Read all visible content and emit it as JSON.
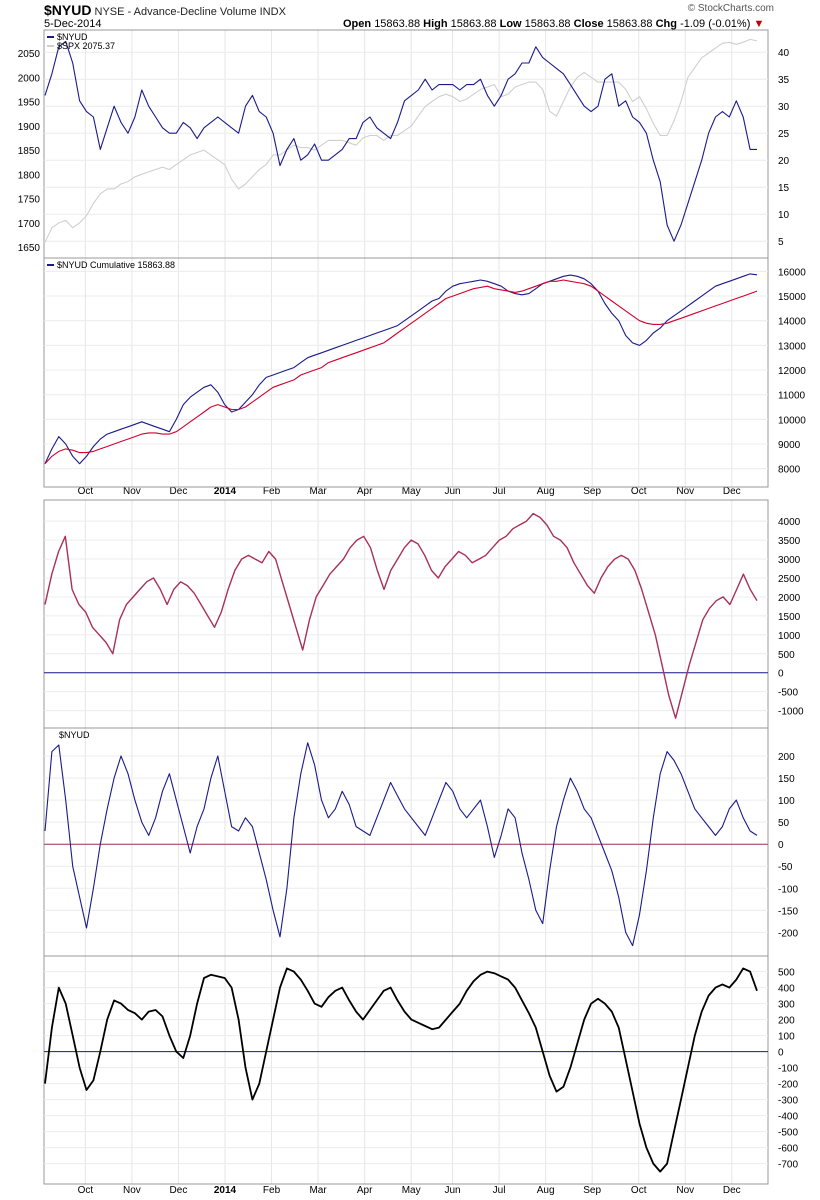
{
  "header": {
    "symbol": "$NYUD",
    "description": "NYSE - Advance-Decline Volume",
    "type": "INDX",
    "date": "5-Dec-2014",
    "brand": "© StockCharts.com",
    "open_label": "Open",
    "open": "15863.88",
    "high_label": "High",
    "high": "15863.88",
    "low_label": "Low",
    "low": "15863.88",
    "close_label": "Close",
    "close": "15863.88",
    "chg_label": "Chg",
    "chg": "-1.09 (-0.01%)",
    "colors": {
      "down": "#c00000"
    }
  },
  "chart_data": [
    {
      "type": "line",
      "panel": "price",
      "legend": [
        "$NYUD",
        "$SPX 2075.37"
      ],
      "series": [
        {
          "name": "$NYUD",
          "axis": "right",
          "color": "#1a1a8c",
          "values": [
            32,
            36,
            41,
            42,
            38,
            31,
            29,
            28,
            22,
            26,
            30,
            27,
            25,
            28,
            33,
            30,
            28,
            26,
            25,
            25,
            27,
            26,
            24,
            26,
            27,
            28,
            27,
            26,
            25,
            30,
            32,
            29,
            28,
            25,
            19,
            22,
            24,
            20,
            21,
            23,
            20,
            20,
            21,
            22,
            24,
            24,
            27,
            28,
            26,
            25,
            24,
            27,
            31,
            32,
            33,
            35,
            33,
            34,
            34,
            34,
            33,
            34,
            34,
            35,
            32,
            30,
            32,
            35,
            36,
            38,
            38,
            41,
            39,
            38,
            37,
            36,
            34,
            32,
            30,
            29,
            30,
            35,
            36,
            30,
            31,
            28,
            27,
            25,
            20,
            16,
            8,
            5,
            8,
            12,
            16,
            20,
            25,
            28,
            29,
            28,
            31,
            28,
            22,
            22
          ]
        },
        {
          "name": "$SPX 2075.37",
          "axis": "left",
          "color": "#cfcfcf",
          "values": [
            1660,
            1690,
            1700,
            1705,
            1690,
            1700,
            1715,
            1740,
            1760,
            1770,
            1770,
            1780,
            1785,
            1795,
            1800,
            1805,
            1810,
            1815,
            1810,
            1820,
            1830,
            1840,
            1845,
            1850,
            1840,
            1830,
            1820,
            1790,
            1770,
            1780,
            1795,
            1810,
            1820,
            1840,
            1840,
            1850,
            1860,
            1855,
            1855,
            1850,
            1860,
            1870,
            1870,
            1870,
            1865,
            1860,
            1875,
            1880,
            1880,
            1870,
            1880,
            1880,
            1890,
            1900,
            1920,
            1940,
            1950,
            1960,
            1965,
            1960,
            1950,
            1955,
            1965,
            1975,
            1980,
            1985,
            1960,
            1965,
            1980,
            1985,
            1990,
            1990,
            1975,
            1930,
            1920,
            1950,
            1980,
            2000,
            2010,
            2000,
            1990,
            1990,
            1990,
            1990,
            1975,
            1950,
            1960,
            1935,
            1905,
            1880,
            1880,
            1910,
            1950,
            2000,
            2020,
            2040,
            2050,
            2060,
            2070,
            2072,
            2068,
            2072,
            2078,
            2075
          ]
        }
      ],
      "y_left": {
        "ticks": [
          1650,
          1700,
          1750,
          1800,
          1850,
          1900,
          1950,
          2000,
          2050
        ],
        "range": [
          1640,
          2085
        ]
      },
      "y_right": {
        "ticks": [
          5,
          10,
          15,
          20,
          25,
          30,
          35,
          40
        ],
        "range": [
          3,
          43
        ]
      }
    },
    {
      "type": "line",
      "panel": "cumulative",
      "legend": [
        "$NYUD Cumulative 15863.88"
      ],
      "series": [
        {
          "name": "$NYUD Cumulative 15863.88",
          "color": "#1a1a8c",
          "values": [
            8200,
            8800,
            9300,
            9000,
            8500,
            8200,
            8500,
            8900,
            9200,
            9400,
            9500,
            9600,
            9700,
            9800,
            9900,
            9800,
            9700,
            9600,
            9500,
            10000,
            10600,
            10900,
            11100,
            11300,
            11400,
            11100,
            10600,
            10300,
            10400,
            10700,
            11000,
            11400,
            11700,
            11800,
            11900,
            12000,
            12100,
            12300,
            12500,
            12600,
            12700,
            12800,
            12900,
            13000,
            13100,
            13200,
            13300,
            13400,
            13500,
            13600,
            13700,
            13800,
            14000,
            14200,
            14400,
            14600,
            14800,
            14900,
            15200,
            15400,
            15500,
            15550,
            15600,
            15650,
            15600,
            15500,
            15400,
            15200,
            15100,
            15050,
            15100,
            15300,
            15500,
            15600,
            15700,
            15800,
            15850,
            15800,
            15700,
            15500,
            15200,
            14700,
            14300,
            14000,
            13400,
            13100,
            13000,
            13200,
            13500,
            13700,
            14000,
            14200,
            14400,
            14600,
            14800,
            15000,
            15200,
            15400,
            15500,
            15600,
            15700,
            15800,
            15900,
            15863.88
          ]
        },
        {
          "name": "Moving average",
          "color": "#d1002d",
          "values": [
            8200,
            8500,
            8700,
            8800,
            8750,
            8650,
            8650,
            8700,
            8800,
            8900,
            9000,
            9100,
            9200,
            9300,
            9400,
            9450,
            9450,
            9400,
            9400,
            9500,
            9700,
            9900,
            10100,
            10300,
            10500,
            10600,
            10500,
            10400,
            10400,
            10500,
            10700,
            10900,
            11100,
            11300,
            11400,
            11500,
            11600,
            11800,
            11900,
            12000,
            12100,
            12300,
            12400,
            12500,
            12600,
            12700,
            12800,
            12900,
            13000,
            13100,
            13300,
            13500,
            13700,
            13900,
            14100,
            14300,
            14500,
            14700,
            14900,
            15000,
            15100,
            15200,
            15300,
            15350,
            15400,
            15300,
            15250,
            15200,
            15150,
            15200,
            15300,
            15400,
            15500,
            15600,
            15600,
            15650,
            15600,
            15550,
            15500,
            15400,
            15200,
            15000,
            14800,
            14600,
            14400,
            14200,
            14000,
            13900,
            13850,
            13850,
            13900,
            14000,
            14100,
            14200,
            14300,
            14400,
            14500,
            14600,
            14700,
            14800,
            14900,
            15000,
            15100,
            15200
          ]
        }
      ],
      "y_right": {
        "ticks": [
          8000,
          9000,
          10000,
          11000,
          12000,
          13000,
          14000,
          15000,
          16000
        ],
        "range": [
          7500,
          16300
        ]
      }
    },
    {
      "type": "line",
      "panel": "indicator-1",
      "series": [
        {
          "name": "",
          "color": "#a8305a",
          "values": [
            1800,
            2600,
            3200,
            3600,
            2200,
            1800,
            1600,
            1200,
            1000,
            800,
            500,
            1400,
            1800,
            2000,
            2200,
            2400,
            2500,
            2200,
            1800,
            2200,
            2400,
            2300,
            2100,
            1800,
            1500,
            1200,
            1600,
            2200,
            2700,
            3000,
            3100,
            3000,
            2900,
            3200,
            3000,
            2400,
            1800,
            1200,
            600,
            1400,
            2000,
            2300,
            2600,
            2800,
            3000,
            3300,
            3500,
            3600,
            3300,
            2700,
            2200,
            2700,
            3000,
            3300,
            3500,
            3400,
            3100,
            2700,
            2500,
            2800,
            3000,
            3200,
            3100,
            2900,
            3000,
            3100,
            3300,
            3500,
            3600,
            3800,
            3900,
            4000,
            4200,
            4100,
            3900,
            3600,
            3500,
            3300,
            2900,
            2600,
            2300,
            2100,
            2500,
            2800,
            3000,
            3100,
            3000,
            2700,
            2200,
            1600,
            1000,
            200,
            -600,
            -1200,
            -500,
            200,
            800,
            1400,
            1700,
            1900,
            2000,
            1800,
            2200,
            2600,
            2200,
            1900
          ]
        }
      ],
      "y_right": {
        "ticks": [
          -1000,
          -500,
          0,
          500,
          1000,
          1500,
          2000,
          2500,
          3000,
          3500,
          4000
        ],
        "range": [
          -1300,
          4400
        ]
      },
      "zero_line_color": "#1a1a8c"
    },
    {
      "type": "line",
      "panel": "indicator-2",
      "legend": [
        "$NYUD"
      ],
      "series": [
        {
          "name": "$NYUD",
          "color": "#1a1a8c",
          "values": [
            30,
            210,
            225,
            100,
            -50,
            -120,
            -190,
            -100,
            0,
            80,
            150,
            200,
            160,
            100,
            50,
            20,
            60,
            120,
            160,
            100,
            40,
            -20,
            40,
            80,
            150,
            200,
            120,
            40,
            30,
            60,
            40,
            -20,
            -80,
            -150,
            -210,
            -100,
            60,
            160,
            230,
            180,
            100,
            60,
            80,
            120,
            90,
            40,
            30,
            20,
            60,
            100,
            140,
            110,
            80,
            60,
            40,
            20,
            60,
            100,
            140,
            120,
            80,
            60,
            80,
            100,
            40,
            -30,
            20,
            80,
            60,
            -20,
            -80,
            -150,
            -180,
            -60,
            40,
            100,
            150,
            120,
            80,
            60,
            20,
            -20,
            -60,
            -120,
            -200,
            -230,
            -160,
            -60,
            60,
            160,
            210,
            190,
            160,
            120,
            80,
            60,
            40,
            20,
            40,
            80,
            100,
            60,
            30,
            20
          ]
        }
      ],
      "y_right": {
        "ticks": [
          -200,
          -150,
          -100,
          -50,
          0,
          50,
          100,
          150,
          200
        ],
        "range": [
          -240,
          250
        ]
      },
      "zero_line_color": "#a8305a"
    },
    {
      "type": "line",
      "panel": "indicator-3",
      "series": [
        {
          "name": "",
          "color": "#000000",
          "values": [
            -200,
            150,
            400,
            300,
            100,
            -100,
            -240,
            -180,
            0,
            200,
            320,
            300,
            260,
            240,
            200,
            250,
            260,
            220,
            100,
            0,
            -40,
            100,
            300,
            460,
            480,
            470,
            460,
            400,
            200,
            -100,
            -300,
            -200,
            0,
            200,
            400,
            520,
            500,
            450,
            380,
            300,
            280,
            340,
            380,
            400,
            320,
            250,
            200,
            260,
            320,
            380,
            400,
            320,
            250,
            200,
            180,
            160,
            140,
            150,
            200,
            250,
            300,
            380,
            440,
            480,
            500,
            490,
            470,
            450,
            400,
            320,
            240,
            150,
            0,
            -150,
            -250,
            -220,
            -100,
            50,
            200,
            300,
            330,
            300,
            250,
            150,
            -50,
            -250,
            -450,
            -600,
            -700,
            -750,
            -700,
            -500,
            -300,
            -100,
            100,
            250,
            350,
            400,
            420,
            400,
            450,
            520,
            500,
            380
          ]
        }
      ],
      "y_right": {
        "ticks": [
          -700,
          -600,
          -500,
          -400,
          -300,
          -200,
          -100,
          0,
          100,
          200,
          300,
          400,
          500
        ],
        "range": [
          -790,
          560
        ]
      },
      "zero_line_color": "#1a1a8c"
    }
  ],
  "x_axis": {
    "months": [
      "Oct",
      "Nov",
      "Dec",
      "2014",
      "Feb",
      "Mar",
      "Apr",
      "May",
      "Jun",
      "Jul",
      "Aug",
      "Sep",
      "Oct",
      "Nov",
      "Dec"
    ],
    "month_positions": [
      8,
      17,
      26,
      35,
      44,
      53,
      62,
      71,
      79,
      88,
      97,
      106,
      115,
      124,
      133
    ],
    "last_index": 140
  }
}
